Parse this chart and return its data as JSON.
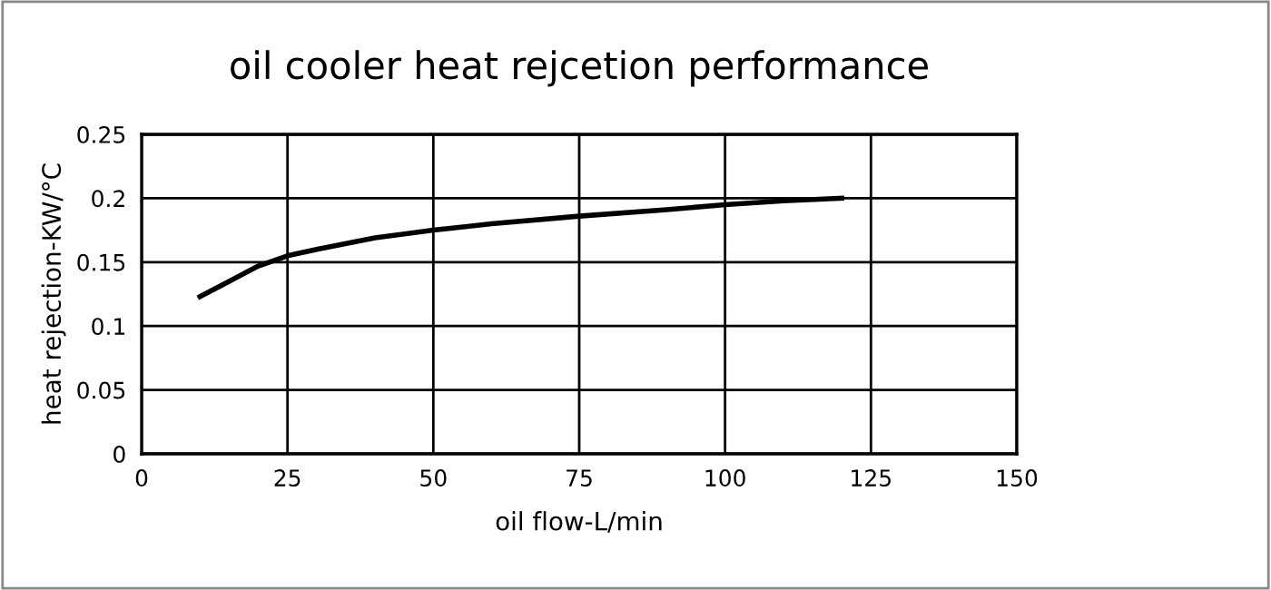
{
  "chart_data": {
    "type": "line",
    "title": "oil cooler heat rejcetion performance",
    "xlabel": "oil flow-L/min",
    "ylabel": "heat rejection-KW/°C",
    "xlim": [
      0,
      150
    ],
    "xticks": [
      0,
      25,
      50,
      75,
      100,
      125,
      150
    ],
    "ylim": [
      0,
      0.25
    ],
    "yticks": [
      0,
      0.05,
      0.1,
      0.15,
      0.2,
      0.25
    ],
    "grid": true,
    "series": [
      {
        "color": "#000000",
        "x": [
          10,
          15,
          20,
          25,
          30,
          40,
          50,
          60,
          75,
          90,
          100,
          110,
          120
        ],
        "values": [
          0.123,
          0.135,
          0.147,
          0.155,
          0.16,
          0.169,
          0.175,
          0.18,
          0.186,
          0.191,
          0.195,
          0.198,
          0.2
        ]
      }
    ]
  }
}
